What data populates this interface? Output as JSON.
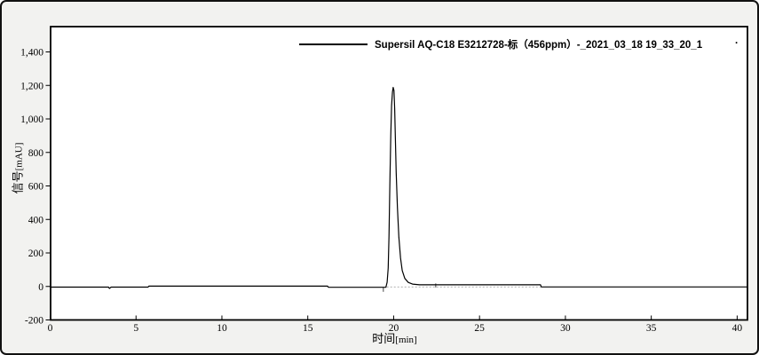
{
  "window": {
    "background_color": "#f2f2f0",
    "plot_background_color": "#ffffff",
    "border_color": "#111111"
  },
  "legend": {
    "label": "Supersil AQ-C18 E3212728-标（456ppm）-_2021_03_18 19_33_20_1",
    "trailing_dot": ".",
    "line_color": "#000000",
    "text_color": "#000000"
  },
  "chart_data": {
    "type": "line",
    "title": "",
    "xlabel": "时间[min]",
    "ylabel": "信号[mAU]",
    "xlabel_parts": {
      "name": "时间",
      "unit": "[min]"
    },
    "ylabel_parts": {
      "name": "信号",
      "unit": "[mAU]"
    },
    "xlim": [
      0,
      40.6
    ],
    "ylim": [
      -200,
      1551
    ],
    "grid": false,
    "legend_position": "top-center-inside",
    "x_ticks": [
      {
        "v": 0,
        "label": "0"
      },
      {
        "v": 5,
        "label": "5"
      },
      {
        "v": 10,
        "label": "10"
      },
      {
        "v": 15,
        "label": "15"
      },
      {
        "v": 20,
        "label": "20"
      },
      {
        "v": 25,
        "label": "25"
      },
      {
        "v": 30,
        "label": "30"
      },
      {
        "v": 35,
        "label": "35"
      },
      {
        "v": 40,
        "label": "40"
      }
    ],
    "y_ticks": [
      {
        "v": -200,
        "label": "-200"
      },
      {
        "v": 0,
        "label": "0"
      },
      {
        "v": 200,
        "label": "200"
      },
      {
        "v": 400,
        "label": "400"
      },
      {
        "v": 600,
        "label": "600"
      },
      {
        "v": 800,
        "label": "800"
      },
      {
        "v": 1000,
        "label": "1,000"
      },
      {
        "v": 1200,
        "label": "1,200"
      },
      {
        "v": 1400,
        "label": "1,400"
      }
    ],
    "series": [
      {
        "name": "Supersil AQ-C18 E3212728-标（456ppm）-_2021_03_18 19_33_20_1",
        "color": "#000000",
        "peak": {
          "retention_time_min": 20.0,
          "height_mAU": 1188
        },
        "points": [
          [
            0,
            -4
          ],
          [
            3.4,
            -4
          ],
          [
            3.45,
            -12
          ],
          [
            3.55,
            -4
          ],
          [
            5.7,
            -4
          ],
          [
            5.75,
            2
          ],
          [
            16.15,
            2
          ],
          [
            16.2,
            -5
          ],
          [
            19.35,
            -5
          ],
          [
            19.55,
            -5
          ],
          [
            19.62,
            25
          ],
          [
            19.68,
            110
          ],
          [
            19.73,
            300
          ],
          [
            19.78,
            620
          ],
          [
            19.83,
            900
          ],
          [
            19.88,
            1080
          ],
          [
            19.93,
            1160
          ],
          [
            19.97,
            1188
          ],
          [
            20.02,
            1170
          ],
          [
            20.06,
            1060
          ],
          [
            20.1,
            880
          ],
          [
            20.15,
            680
          ],
          [
            20.22,
            470
          ],
          [
            20.3,
            295
          ],
          [
            20.4,
            170
          ],
          [
            20.5,
            95
          ],
          [
            20.65,
            48
          ],
          [
            20.85,
            24
          ],
          [
            21.1,
            14
          ],
          [
            21.5,
            10
          ],
          [
            28.55,
            10
          ],
          [
            28.6,
            -3
          ],
          [
            40.55,
            -3
          ]
        ]
      }
    ],
    "integration_marks": [
      {
        "x": 19.4,
        "y1": -5,
        "y2": -32
      },
      {
        "x": 22.45,
        "y1": 18,
        "y2": -6
      }
    ],
    "baseline_dash": {
      "x1": 19.6,
      "x2": 28.6,
      "y": -3,
      "color": "#b0b0b0"
    }
  }
}
